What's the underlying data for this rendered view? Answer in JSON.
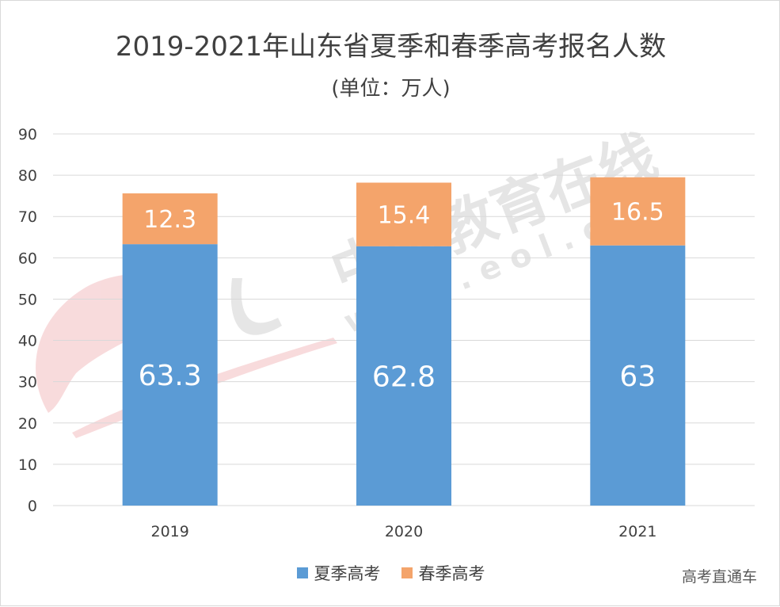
{
  "title": "2019-2021年山东省夏季和春季高考报名人数",
  "subtitle": "(单位：万人)",
  "source_note": "高考直通车",
  "watermark": {
    "cn": "中国教育在线",
    "url": "w w w . e o l . c n"
  },
  "colors": {
    "summer": "#5b9bd5",
    "spring": "#f4a46b",
    "grid": "#d9d9d9",
    "text": "#404040"
  },
  "chart_data": {
    "type": "bar",
    "stacked": true,
    "title": "2019-2021年山东省夏季和春季高考报名人数",
    "subtitle": "(单位：万人)",
    "categories": [
      "2019",
      "2020",
      "2021"
    ],
    "series": [
      {
        "name": "夏季高考",
        "values": [
          63.3,
          62.8,
          63
        ],
        "labels": [
          "63.3",
          "62.8",
          "63"
        ]
      },
      {
        "name": "春季高考",
        "values": [
          12.3,
          15.4,
          16.5
        ],
        "labels": [
          "12.3",
          "15.4",
          "16.5"
        ]
      }
    ],
    "ylim": [
      0,
      90
    ],
    "yticks": [
      0,
      10,
      20,
      30,
      40,
      50,
      60,
      70,
      80,
      90
    ],
    "grid": true,
    "legend": "bottom"
  }
}
